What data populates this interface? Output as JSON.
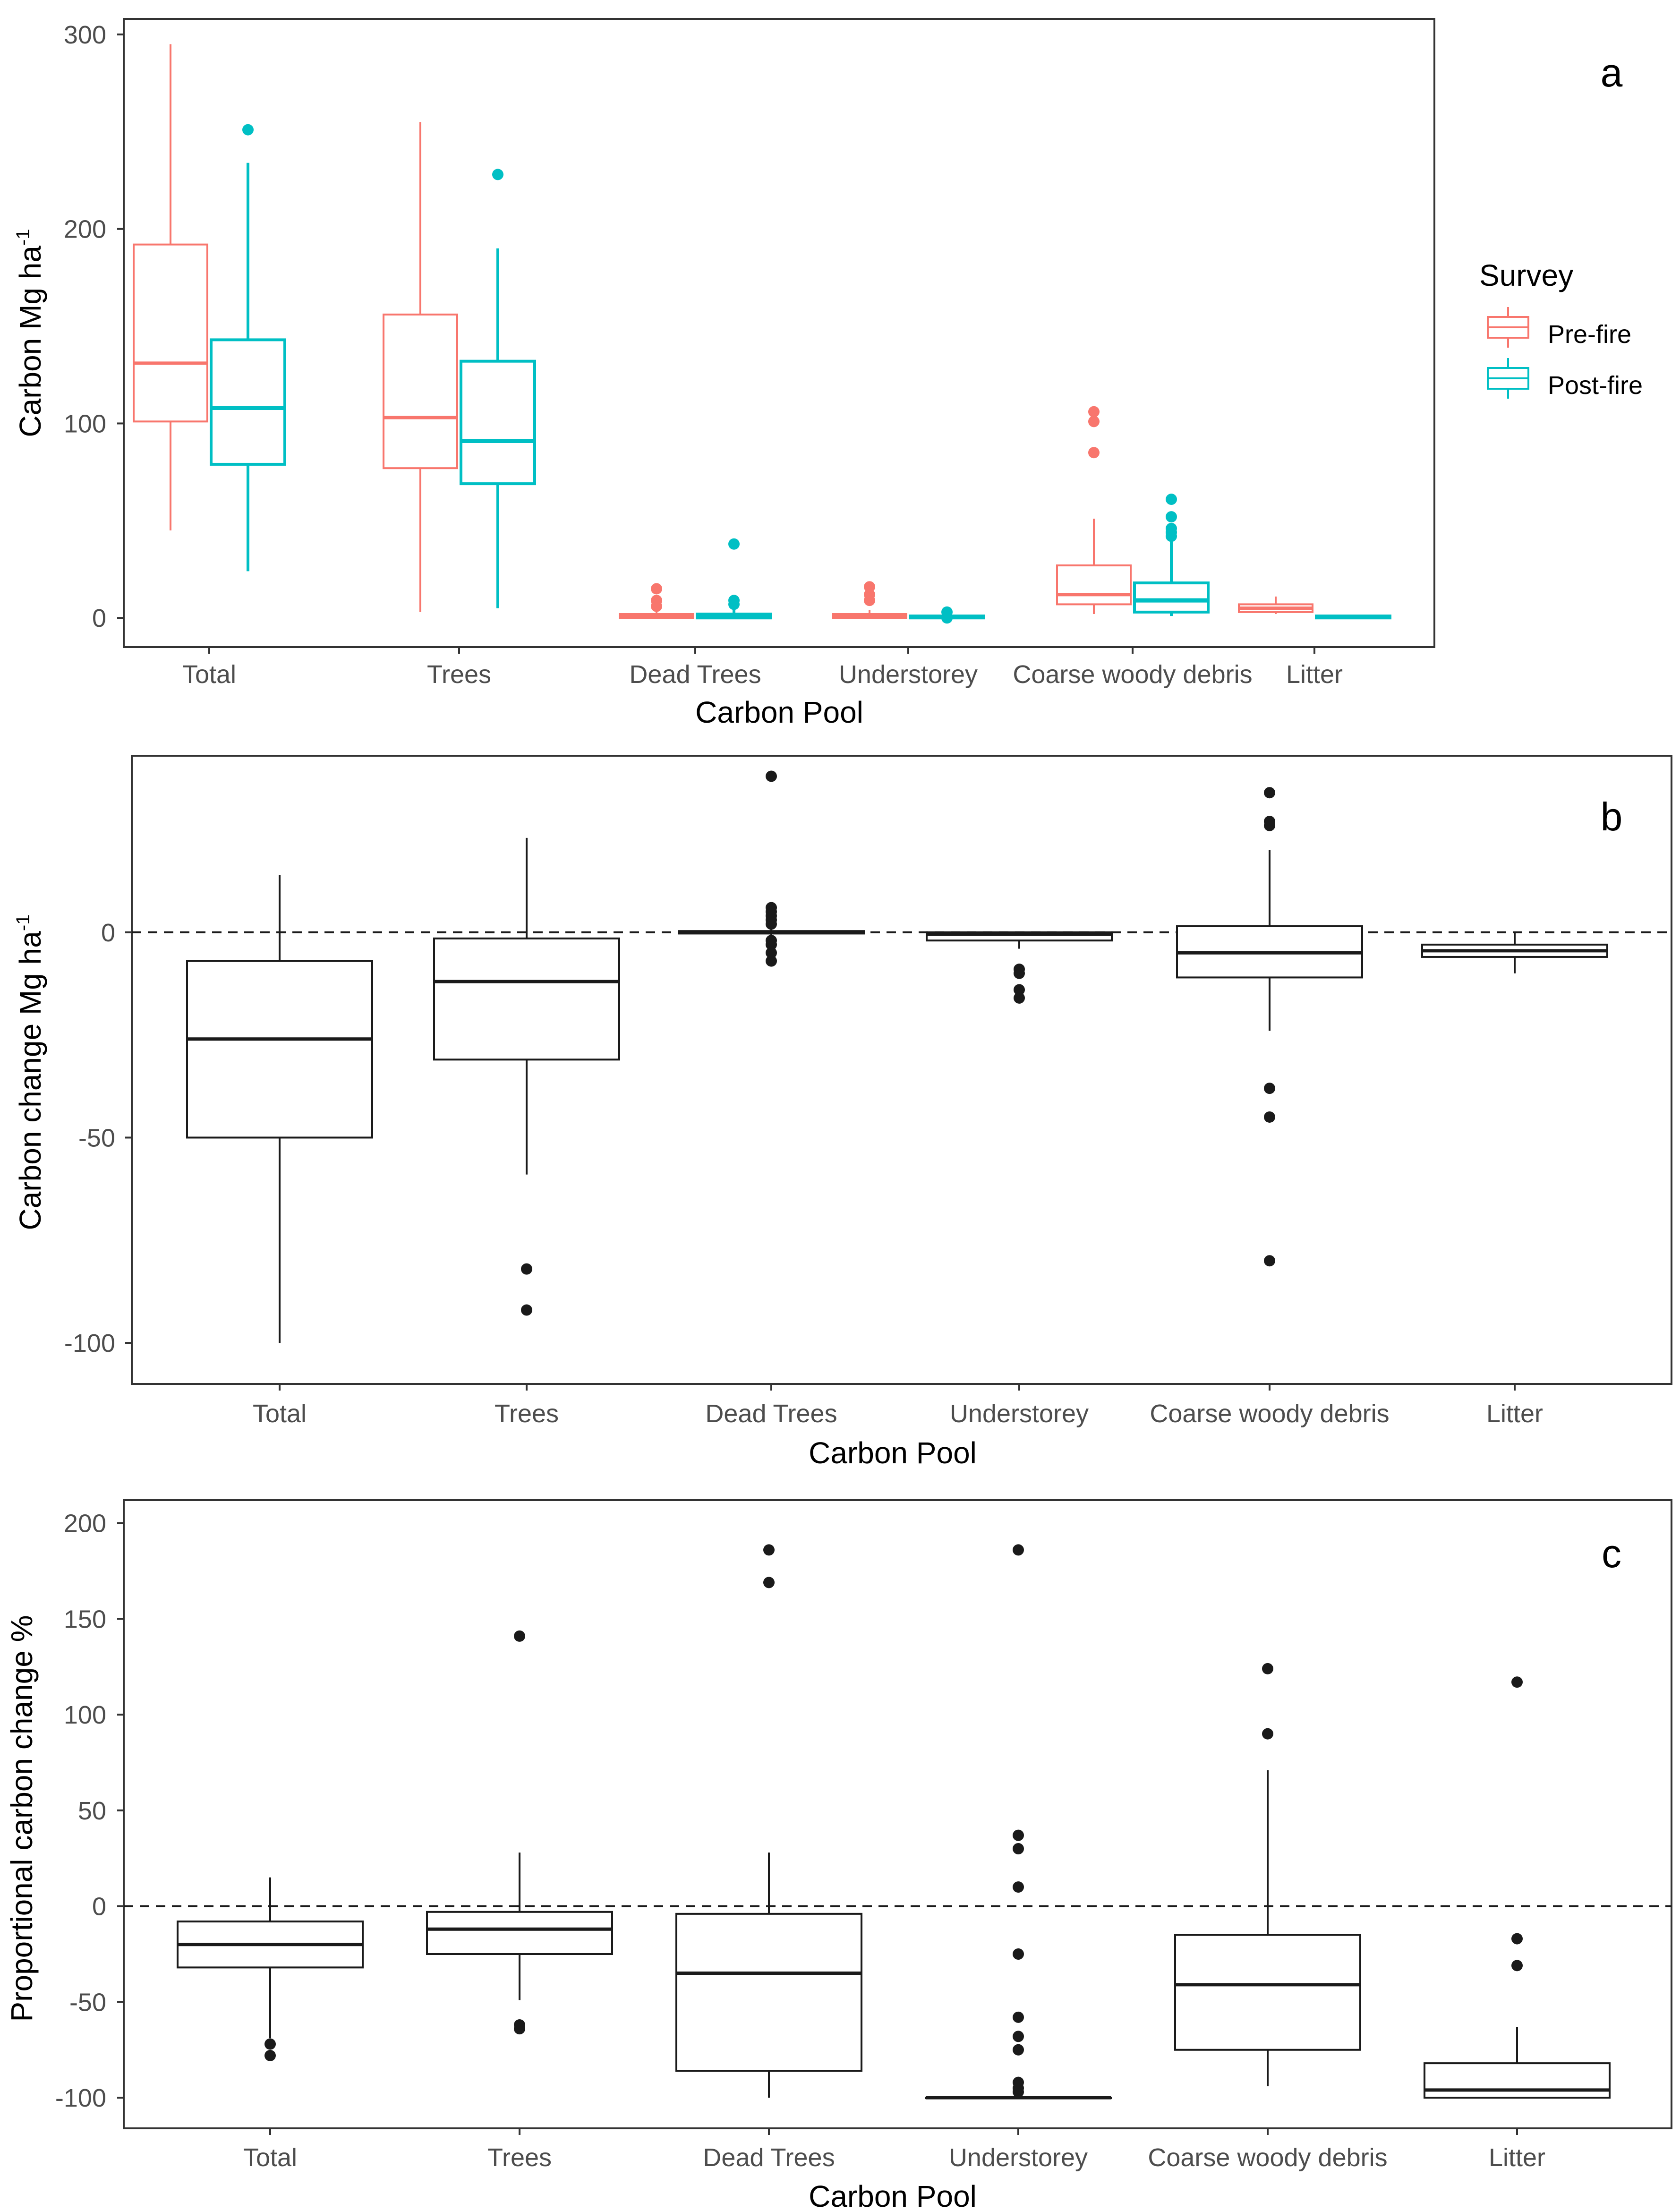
{
  "colors": {
    "pre": "#F8766D",
    "post": "#00BFC4",
    "mono": "#1a1a1a"
  },
  "chart_data": [
    {
      "panel": "a",
      "type": "boxplot",
      "xlabel": "Carbon Pool",
      "ylabel_main": "Carbon Mg ha",
      "ylabel_sup": "-1",
      "ylim": [
        -15,
        308
      ],
      "yticks": [
        0,
        100,
        200,
        300
      ],
      "categories": [
        "Total",
        "Trees",
        "Dead Trees",
        "Understorey",
        "Coarse woody debris",
        "Litter"
      ],
      "legend": {
        "title": "Survey",
        "entries": [
          "Pre-fire",
          "Post-fire"
        ]
      },
      "series": [
        {
          "name": "Pre-fire",
          "color": "#F8766D",
          "boxes": [
            {
              "min": 45,
              "q1": 101,
              "median": 131,
              "q3": 192,
              "max": 295,
              "outliers": []
            },
            {
              "min": 3,
              "q1": 77,
              "median": 103,
              "q3": 156,
              "max": 255,
              "outliers": []
            },
            {
              "min": 0,
              "q1": 0,
              "median": 1,
              "q3": 2,
              "max": 4,
              "outliers": [
                6,
                9,
                15
              ]
            },
            {
              "min": 0,
              "q1": 0,
              "median": 1,
              "q3": 2,
              "max": 4,
              "outliers": [
                9,
                12,
                16
              ]
            },
            {
              "min": 2,
              "q1": 7,
              "median": 12,
              "q3": 27,
              "max": 51,
              "outliers": [
                85,
                101,
                106
              ]
            },
            {
              "min": 2,
              "q1": 3,
              "median": 5,
              "q3": 7,
              "max": 11,
              "outliers": []
            }
          ]
        },
        {
          "name": "Post-fire",
          "color": "#00BFC4",
          "boxes": [
            {
              "min": 24,
              "q1": 79,
              "median": 108,
              "q3": 143,
              "max": 234,
              "outliers": [
                251
              ]
            },
            {
              "min": 5,
              "q1": 69,
              "median": 91,
              "q3": 132,
              "max": 190,
              "outliers": [
                228
              ]
            },
            {
              "min": 0,
              "q1": 0,
              "median": 1,
              "q3": 2,
              "max": 4,
              "outliers": [
                7,
                9,
                38
              ]
            },
            {
              "min": 0,
              "q1": 0,
              "median": 0.5,
              "q3": 1,
              "max": 2,
              "outliers": [
                0,
                3
              ]
            },
            {
              "min": 1,
              "q1": 3,
              "median": 9,
              "q3": 18,
              "max": 40,
              "outliers": [
                42,
                44,
                46,
                52,
                61
              ]
            },
            {
              "min": 0,
              "q1": 0,
              "median": 0.5,
              "q3": 1,
              "max": 1.5,
              "outliers": []
            }
          ]
        }
      ]
    },
    {
      "panel": "b",
      "type": "boxplot",
      "xlabel": "Carbon Pool",
      "ylabel_main": "Carbon change Mg ha",
      "ylabel_sup": "-1",
      "ylim": [
        -110,
        43
      ],
      "yticks": [
        -100,
        -50,
        0
      ],
      "reference_line": 0,
      "categories": [
        "Total",
        "Trees",
        "Dead Trees",
        "Understorey",
        "Coarse woody debris",
        "Litter"
      ],
      "boxes": [
        {
          "min": -100,
          "q1": -50,
          "median": -26,
          "q3": -7,
          "max": 14,
          "outliers": []
        },
        {
          "min": -59,
          "q1": -31,
          "median": -12,
          "q3": -1.5,
          "max": 23,
          "outliers": [
            -82,
            -92
          ]
        },
        {
          "min": -1,
          "q1": -0.3,
          "median": 0,
          "q3": 0.3,
          "max": 1,
          "outliers": [
            -7,
            -5,
            -3,
            -2,
            2,
            3,
            4,
            5,
            6,
            38
          ]
        },
        {
          "min": -4,
          "q1": -2,
          "median": -0.5,
          "q3": 0,
          "max": 0,
          "outliers": [
            -9,
            -10,
            -14,
            -16
          ]
        },
        {
          "min": -24,
          "q1": -11,
          "median": -5,
          "q3": 1.5,
          "max": 20,
          "outliers": [
            26,
            27,
            34,
            -38,
            -45,
            -80
          ]
        },
        {
          "min": -10,
          "q1": -6,
          "median": -4.5,
          "q3": -3,
          "max": 0,
          "outliers": []
        }
      ]
    },
    {
      "panel": "c",
      "type": "boxplot",
      "xlabel": "Carbon Pool",
      "ylabel": "Proportional carbon change %",
      "ylim": [
        -116,
        212
      ],
      "yticks": [
        -100,
        -50,
        0,
        50,
        100,
        150,
        200
      ],
      "reference_line": 0,
      "categories": [
        "Total",
        "Trees",
        "Dead Trees",
        "Understorey",
        "Coarse woody debris",
        "Litter"
      ],
      "boxes": [
        {
          "min": -69,
          "q1": -32,
          "median": -20,
          "q3": -8,
          "max": 15,
          "outliers": [
            -72,
            -78
          ]
        },
        {
          "min": -49,
          "q1": -25,
          "median": -12,
          "q3": -3,
          "max": 28,
          "outliers": [
            -62,
            -64,
            141
          ]
        },
        {
          "min": -100,
          "q1": -86,
          "median": -35,
          "q3": -4,
          "max": 28,
          "outliers": [
            169,
            186
          ]
        },
        {
          "min": -100,
          "q1": -100,
          "median": -100,
          "q3": -100,
          "max": -100,
          "outliers": [
            -92,
            -95,
            -97,
            -68,
            -75,
            -58,
            -25,
            10,
            30,
            37,
            186
          ]
        },
        {
          "min": -94,
          "q1": -75,
          "median": -41,
          "q3": -15,
          "max": 71,
          "outliers": [
            90,
            124
          ]
        },
        {
          "min": -100,
          "q1": -100,
          "median": -96,
          "q3": -82,
          "max": -63,
          "outliers": [
            -17,
            -31,
            117
          ]
        }
      ]
    }
  ]
}
